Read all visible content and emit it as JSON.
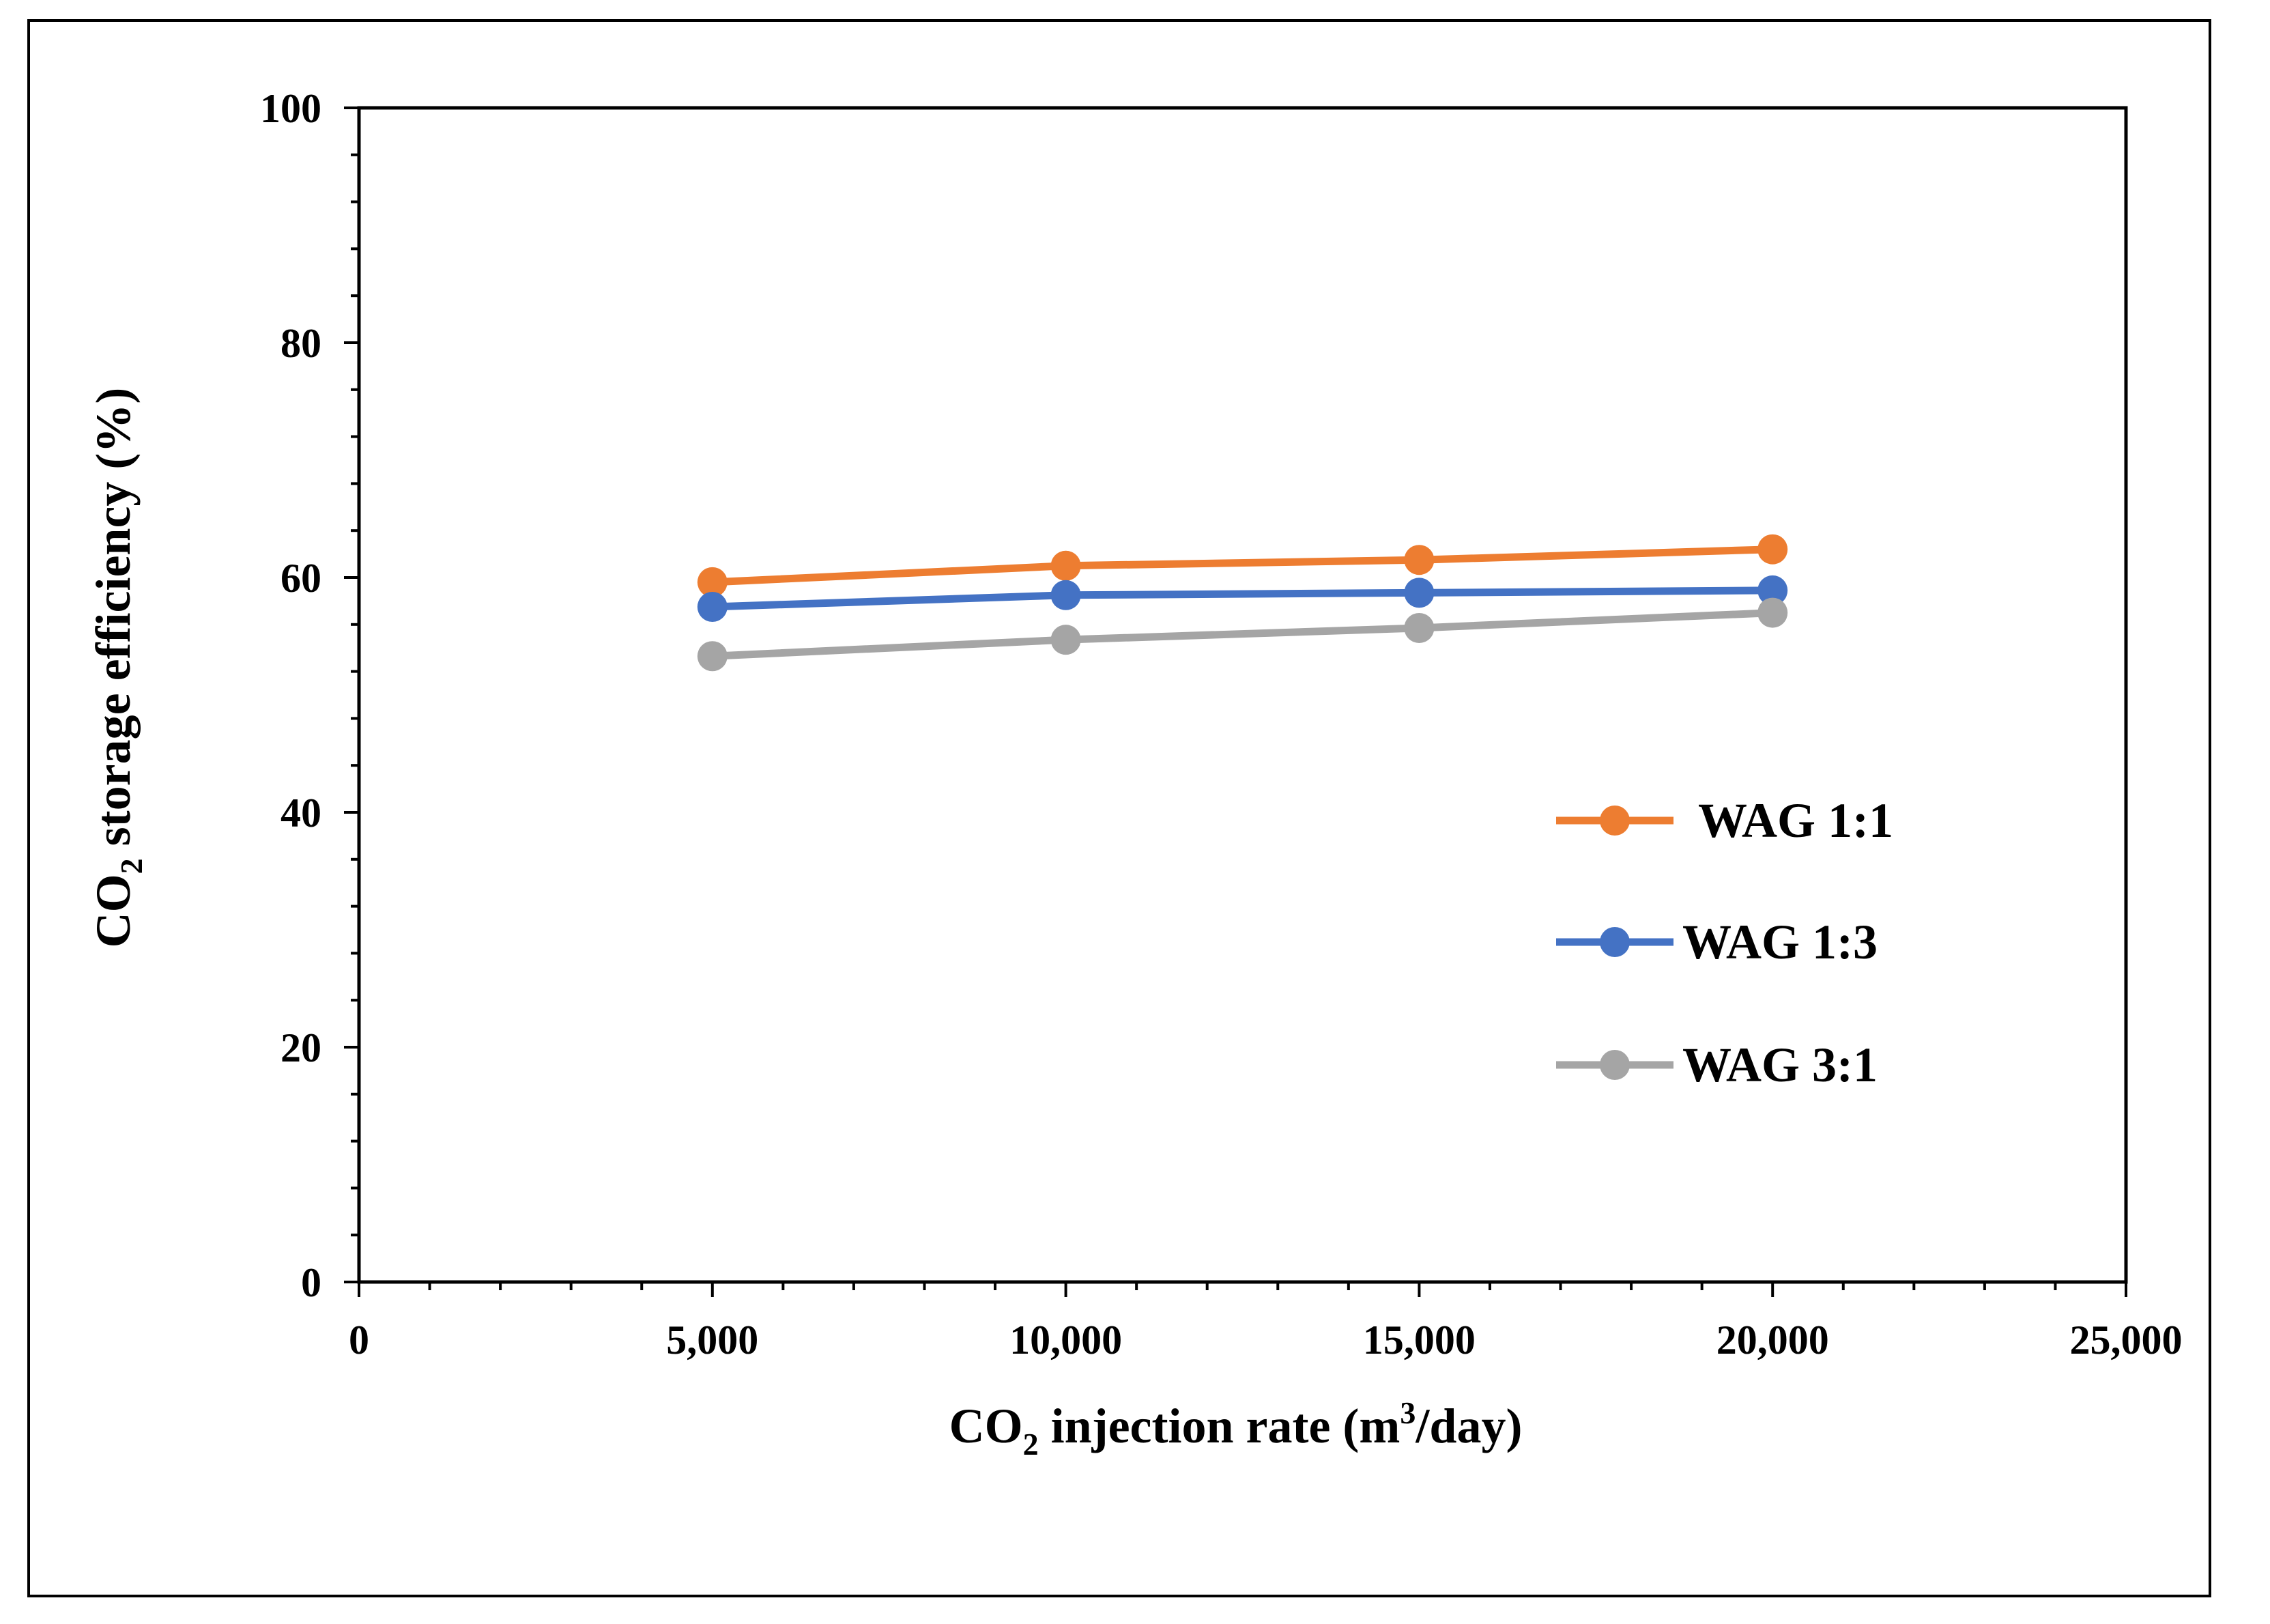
{
  "chart_data": {
    "type": "line",
    "title": "",
    "xlabel": {
      "prefix": "CO",
      "sub": "2",
      "mid": " injection rate (m",
      "sup": "3",
      "suffix": "/day)"
    },
    "ylabel": {
      "prefix": "CO",
      "sub": "2",
      "suffix": " storage efficiency (%)"
    },
    "xlim": [
      0,
      25000
    ],
    "ylim": [
      0,
      100
    ],
    "x_ticks": [
      {
        "value": 0,
        "label": "0"
      },
      {
        "value": 5000,
        "label": "5,000"
      },
      {
        "value": 10000,
        "label": "10,000"
      },
      {
        "value": 15000,
        "label": "15,000"
      },
      {
        "value": 20000,
        "label": "20,000"
      },
      {
        "value": 25000,
        "label": "25,000"
      }
    ],
    "y_ticks": [
      {
        "value": 0,
        "label": "0"
      },
      {
        "value": 20,
        "label": "20"
      },
      {
        "value": 40,
        "label": "40"
      },
      {
        "value": 60,
        "label": "60"
      },
      {
        "value": 80,
        "label": "80"
      },
      {
        "value": 100,
        "label": "100"
      }
    ],
    "x_minor_step": 1000,
    "y_minor_step": 4,
    "grid": false,
    "legend_position": "right-center",
    "x": [
      5000,
      10000,
      15000,
      20000
    ],
    "series": [
      {
        "name": "WAG 1:1",
        "color": "#ED7D31",
        "values": [
          59.6,
          61.0,
          61.5,
          62.4
        ]
      },
      {
        "name": "WAG 1:3",
        "color": "#4472C4",
        "values": [
          57.5,
          58.5,
          58.7,
          58.9
        ]
      },
      {
        "name": "WAG 3:1",
        "color": "#A5A5A5",
        "values": [
          53.3,
          54.7,
          55.7,
          57.0
        ]
      }
    ]
  }
}
